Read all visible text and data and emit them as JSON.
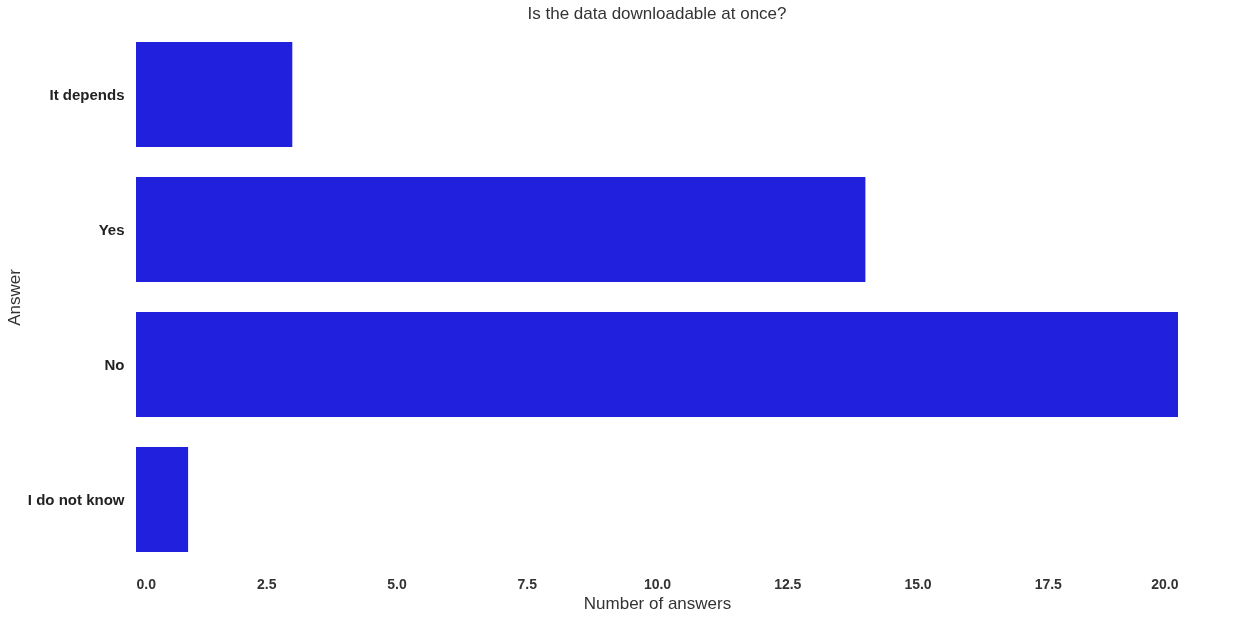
{
  "chart_data": {
    "type": "bar",
    "orientation": "horizontal",
    "title": "Is the data downloadable at once?",
    "xlabel": "Number of answers",
    "ylabel": "Answer",
    "categories": [
      "It depends",
      "Yes",
      "No",
      "I do not know"
    ],
    "series": [
      {
        "color": "#2020dd",
        "values": [
          3,
          14,
          20,
          1
        ]
      }
    ],
    "xlim": [
      0,
      20
    ],
    "xticks": [
      {
        "value": 0,
        "label": "0.0"
      },
      {
        "value": 2.5,
        "label": "2.5"
      },
      {
        "value": 5,
        "label": "5.0"
      },
      {
        "value": 7.5,
        "label": "7.5"
      },
      {
        "value": 10,
        "label": "10.0"
      },
      {
        "value": 12.5,
        "label": "12.5"
      },
      {
        "value": 15,
        "label": "15.0"
      },
      {
        "value": 17.5,
        "label": "17.5"
      },
      {
        "value": 20,
        "label": "20.0"
      }
    ],
    "grid": false,
    "legend": false
  }
}
